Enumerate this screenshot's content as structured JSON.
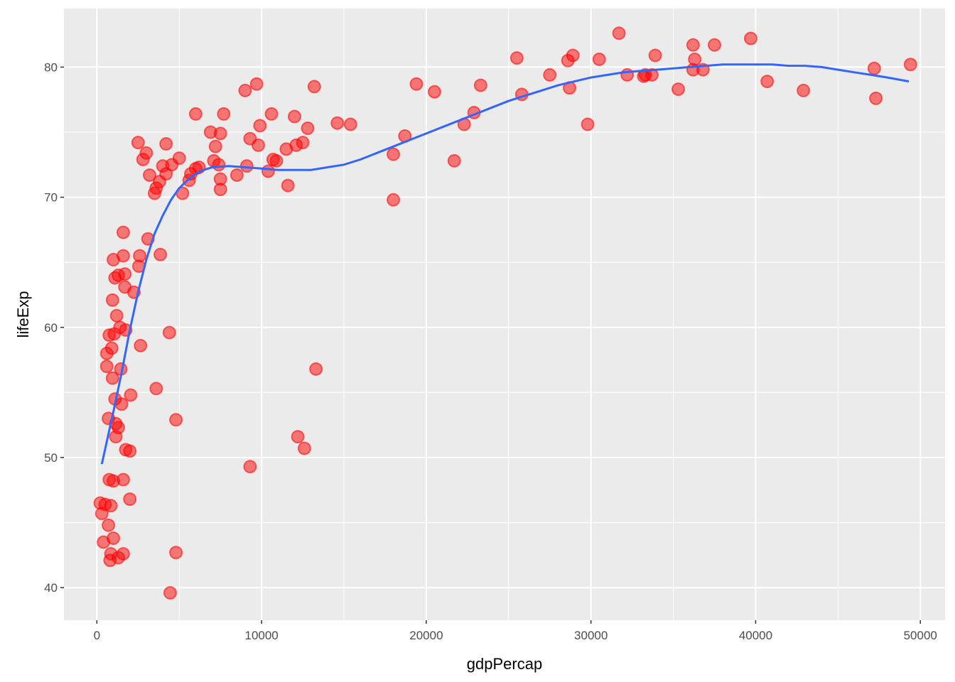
{
  "chart_data": {
    "type": "scatter",
    "xlabel": "gdpPercap",
    "ylabel": "lifeExp",
    "xlim": [
      -2000,
      51500
    ],
    "ylim": [
      37.5,
      84.5
    ],
    "x_ticks": [
      0,
      10000,
      20000,
      30000,
      40000,
      50000
    ],
    "x_tick_labels": [
      "0",
      "10000",
      "20000",
      "30000",
      "40000",
      "50000"
    ],
    "y_ticks": [
      40,
      50,
      60,
      70,
      80
    ],
    "y_tick_labels": [
      "40",
      "50",
      "60",
      "70",
      "80"
    ],
    "grid": true,
    "background_color": "#ebebeb",
    "point_color": "#ff0000",
    "trend_color": "#3366ff",
    "points": [
      [
        200,
        46.5
      ],
      [
        300,
        45.7
      ],
      [
        400,
        43.5
      ],
      [
        500,
        46.4
      ],
      [
        600,
        57.0
      ],
      [
        600,
        58.0
      ],
      [
        700,
        53.0
      ],
      [
        700,
        44.8
      ],
      [
        750,
        59.4
      ],
      [
        750,
        48.3
      ],
      [
        800,
        42.1
      ],
      [
        850,
        46.3
      ],
      [
        850,
        42.6
      ],
      [
        900,
        58.4
      ],
      [
        950,
        62.1
      ],
      [
        950,
        56.1
      ],
      [
        1000,
        65.2
      ],
      [
        1000,
        48.2
      ],
      [
        1000,
        43.8
      ],
      [
        1050,
        59.5
      ],
      [
        1100,
        63.8
      ],
      [
        1100,
        54.5
      ],
      [
        1150,
        51.6
      ],
      [
        1150,
        52.6
      ],
      [
        1200,
        60.9
      ],
      [
        1300,
        52.3
      ],
      [
        1300,
        64.0
      ],
      [
        1300,
        42.3
      ],
      [
        1400,
        60.0
      ],
      [
        1450,
        56.8
      ],
      [
        1500,
        54.1
      ],
      [
        1600,
        67.3
      ],
      [
        1600,
        65.5
      ],
      [
        1600,
        48.3
      ],
      [
        1600,
        42.6
      ],
      [
        1700,
        64.1
      ],
      [
        1700,
        63.1
      ],
      [
        1750,
        59.8
      ],
      [
        1750,
        50.6
      ],
      [
        2000,
        50.5
      ],
      [
        2000,
        46.8
      ],
      [
        2050,
        54.8
      ],
      [
        2250,
        62.7
      ],
      [
        2500,
        74.2
      ],
      [
        2550,
        64.7
      ],
      [
        2600,
        65.5
      ],
      [
        2650,
        58.6
      ],
      [
        2800,
        72.9
      ],
      [
        3000,
        73.4
      ],
      [
        3100,
        66.8
      ],
      [
        3200,
        71.7
      ],
      [
        3500,
        70.3
      ],
      [
        3600,
        70.7
      ],
      [
        3600,
        55.3
      ],
      [
        3800,
        71.2
      ],
      [
        3850,
        65.6
      ],
      [
        4000,
        72.4
      ],
      [
        4200,
        71.8
      ],
      [
        4200,
        74.1
      ],
      [
        4400,
        59.6
      ],
      [
        4450,
        39.6
      ],
      [
        4550,
        72.5
      ],
      [
        4800,
        52.9
      ],
      [
        4800,
        42.7
      ],
      [
        5000,
        73.0
      ],
      [
        5200,
        70.3
      ],
      [
        5600,
        71.3
      ],
      [
        5700,
        71.8
      ],
      [
        6000,
        76.4
      ],
      [
        6000,
        72.2
      ],
      [
        6200,
        72.3
      ],
      [
        6900,
        75.0
      ],
      [
        7100,
        72.8
      ],
      [
        7200,
        73.9
      ],
      [
        7400,
        72.5
      ],
      [
        7500,
        74.9
      ],
      [
        7500,
        71.4
      ],
      [
        7500,
        70.6
      ],
      [
        7700,
        76.4
      ],
      [
        8500,
        71.7
      ],
      [
        9000,
        78.2
      ],
      [
        9100,
        72.4
      ],
      [
        9300,
        74.5
      ],
      [
        9300,
        49.3
      ],
      [
        9700,
        78.7
      ],
      [
        9800,
        74.0
      ],
      [
        9900,
        75.5
      ],
      [
        10400,
        72.0
      ],
      [
        10600,
        76.4
      ],
      [
        10700,
        72.9
      ],
      [
        10900,
        72.8
      ],
      [
        11500,
        73.7
      ],
      [
        11600,
        70.9
      ],
      [
        12000,
        76.2
      ],
      [
        12100,
        74.0
      ],
      [
        12200,
        51.6
      ],
      [
        12500,
        74.2
      ],
      [
        12600,
        50.7
      ],
      [
        12800,
        75.3
      ],
      [
        13200,
        78.5
      ],
      [
        13300,
        56.8
      ],
      [
        14600,
        75.7
      ],
      [
        15400,
        75.6
      ],
      [
        18000,
        73.3
      ],
      [
        18000,
        69.8
      ],
      [
        18700,
        74.7
      ],
      [
        19400,
        78.7
      ],
      [
        20500,
        78.1
      ],
      [
        21700,
        72.8
      ],
      [
        22300,
        75.6
      ],
      [
        22900,
        76.5
      ],
      [
        23300,
        78.6
      ],
      [
        25500,
        80.7
      ],
      [
        25800,
        77.9
      ],
      [
        27500,
        79.4
      ],
      [
        28600,
        80.5
      ],
      [
        28700,
        78.4
      ],
      [
        28900,
        80.9
      ],
      [
        29800,
        75.6
      ],
      [
        30500,
        80.6
      ],
      [
        31700,
        82.6
      ],
      [
        32200,
        79.4
      ],
      [
        33200,
        79.3
      ],
      [
        33300,
        79.4
      ],
      [
        33700,
        79.4
      ],
      [
        33900,
        80.9
      ],
      [
        35300,
        78.3
      ],
      [
        36200,
        81.7
      ],
      [
        36200,
        79.8
      ],
      [
        36300,
        80.6
      ],
      [
        36800,
        79.8
      ],
      [
        37500,
        81.7
      ],
      [
        39700,
        82.2
      ],
      [
        40700,
        78.9
      ],
      [
        42900,
        78.2
      ],
      [
        47200,
        79.9
      ],
      [
        47300,
        77.6
      ],
      [
        49400,
        80.2
      ]
    ],
    "trend": [
      [
        300,
        49.5
      ],
      [
        1000,
        53.5
      ],
      [
        1500,
        56.5
      ],
      [
        2000,
        59.8
      ],
      [
        2500,
        62.7
      ],
      [
        3000,
        65.2
      ],
      [
        3500,
        67.2
      ],
      [
        4000,
        68.6
      ],
      [
        4500,
        69.8
      ],
      [
        5000,
        70.7
      ],
      [
        5500,
        71.3
      ],
      [
        6000,
        71.8
      ],
      [
        6500,
        72.1
      ],
      [
        7000,
        72.3
      ],
      [
        8000,
        72.4
      ],
      [
        9000,
        72.3
      ],
      [
        10000,
        72.2
      ],
      [
        11000,
        72.1
      ],
      [
        12000,
        72.1
      ],
      [
        13000,
        72.1
      ],
      [
        14000,
        72.3
      ],
      [
        15000,
        72.5
      ],
      [
        16000,
        72.9
      ],
      [
        17000,
        73.4
      ],
      [
        18000,
        73.9
      ],
      [
        19000,
        74.4
      ],
      [
        20000,
        74.9
      ],
      [
        21000,
        75.4
      ],
      [
        22000,
        75.9
      ],
      [
        23000,
        76.4
      ],
      [
        24000,
        76.9
      ],
      [
        25000,
        77.4
      ],
      [
        26000,
        77.8
      ],
      [
        27000,
        78.2
      ],
      [
        28000,
        78.6
      ],
      [
        29000,
        78.9
      ],
      [
        30000,
        79.2
      ],
      [
        31000,
        79.4
      ],
      [
        32000,
        79.6
      ],
      [
        33000,
        79.7
      ],
      [
        34000,
        79.8
      ],
      [
        35000,
        79.9
      ],
      [
        36000,
        80.0
      ],
      [
        37000,
        80.1
      ],
      [
        38000,
        80.2
      ],
      [
        39000,
        80.2
      ],
      [
        40000,
        80.2
      ],
      [
        41000,
        80.2
      ],
      [
        42000,
        80.1
      ],
      [
        43000,
        80.1
      ],
      [
        44000,
        80.0
      ],
      [
        45000,
        79.8
      ],
      [
        46000,
        79.6
      ],
      [
        47000,
        79.4
      ],
      [
        48000,
        79.2
      ],
      [
        49300,
        78.9
      ]
    ]
  }
}
